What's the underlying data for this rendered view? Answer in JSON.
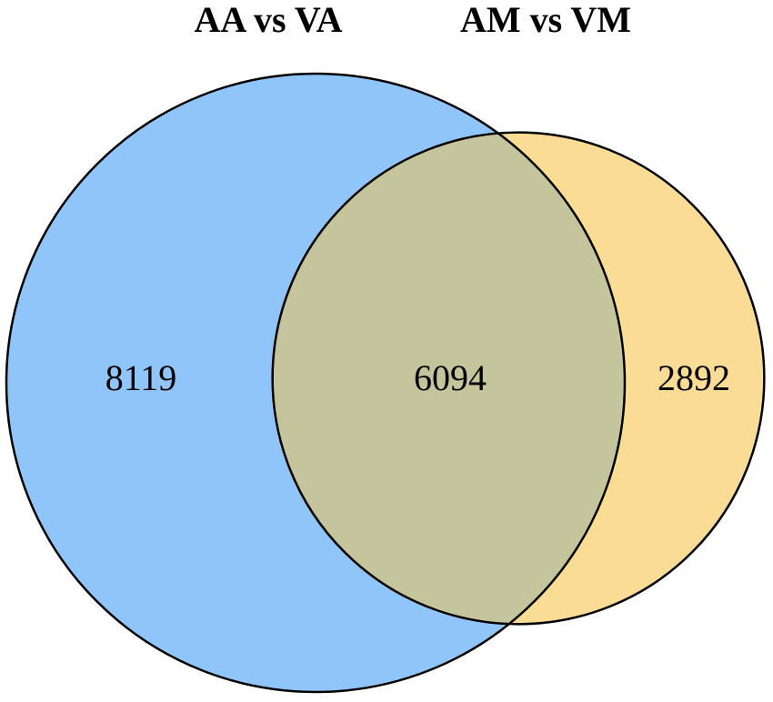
{
  "chart_data": {
    "type": "venn",
    "sets": [
      {
        "name": "AA vs VA",
        "color": "#90c5fa"
      },
      {
        "name": "AM vs VM",
        "color": "#fbdc94"
      }
    ],
    "overlap_color": "#c5c59d",
    "values": [
      8119,
      6094,
      2892
    ]
  }
}
